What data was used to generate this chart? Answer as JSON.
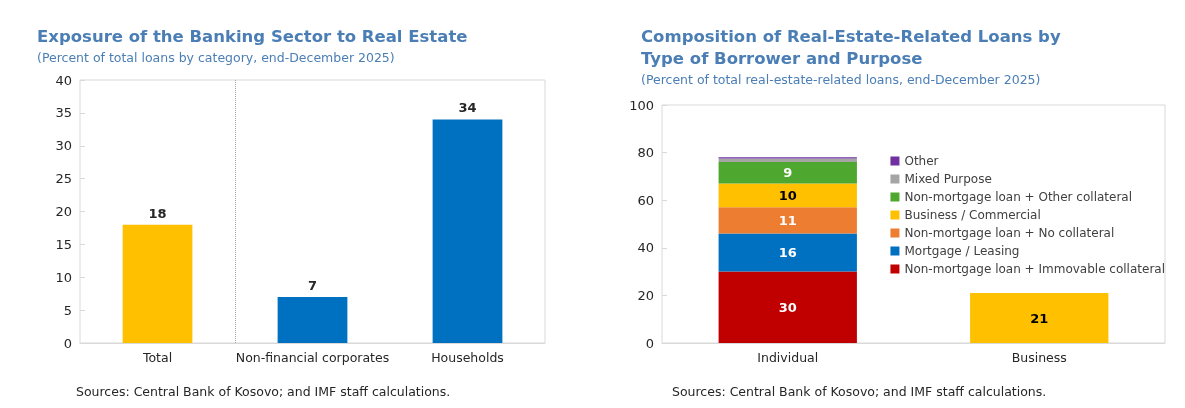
{
  "chart_data": [
    {
      "type": "bar",
      "title": "Exposure of the Banking Sector to Real Estate",
      "subtitle": "(Percent of total loans by category, end-December 2025)",
      "categories": [
        "Total",
        "Non-financial corporates",
        "Households"
      ],
      "values": [
        18,
        7,
        34
      ],
      "colors": [
        "#ffc000",
        "#0070c0",
        "#0070c0"
      ],
      "ylim": [
        0,
        40
      ],
      "yticks": [
        0,
        5,
        10,
        15,
        20,
        25,
        30,
        35,
        40
      ],
      "grid": false,
      "data_labels": true,
      "legend": false,
      "annotations": [
        "Sources: Central Bank of Kosovo; and IMF staff calculations."
      ]
    },
    {
      "type": "bar",
      "title": "Composition of Real-Estate-Related Loans by Type of Borrower and Purpose",
      "subtitle": "(Percent of total real-estate-related loans, end-December 2025)",
      "categories": [
        "Individual",
        "Business"
      ],
      "stacked": true,
      "ylim": [
        0,
        100
      ],
      "yticks": [
        0,
        20,
        40,
        60,
        80,
        100
      ],
      "grid": false,
      "legend": "right",
      "series": [
        {
          "name": "Non-mortgage loan + Immovable collateral",
          "color": "#c00000",
          "values": [
            30,
            null
          ],
          "value_labels": [
            "30",
            null
          ]
        },
        {
          "name": "Mortgage / Leasing",
          "color": "#0070c0",
          "values": [
            16,
            null
          ],
          "value_labels": [
            "16",
            null
          ]
        },
        {
          "name": "Non-mortgage loan + No collateral",
          "color": "#ed7d31",
          "values": [
            11,
            null
          ],
          "value_labels": [
            "11",
            null
          ]
        },
        {
          "name": "Business / Commercial",
          "color": "#ffc000",
          "values": [
            10,
            21
          ],
          "value_labels": [
            "10",
            "21"
          ]
        },
        {
          "name": "Non-mortgage loan + Other collateral",
          "color": "#4ea72e",
          "values": [
            9,
            null
          ],
          "value_labels": [
            "9",
            null
          ]
        },
        {
          "name": "Mixed Purpose",
          "color": "#a5a5a5",
          "values": [
            1.5,
            null
          ],
          "value_labels": [
            null,
            null
          ]
        },
        {
          "name": "Other",
          "color": "#7030a0",
          "values": [
            0.5,
            null
          ],
          "value_labels": [
            null,
            null
          ]
        }
      ],
      "annotations": [
        "Sources: Central Bank of Kosovo; and IMF staff calculations."
      ]
    }
  ]
}
